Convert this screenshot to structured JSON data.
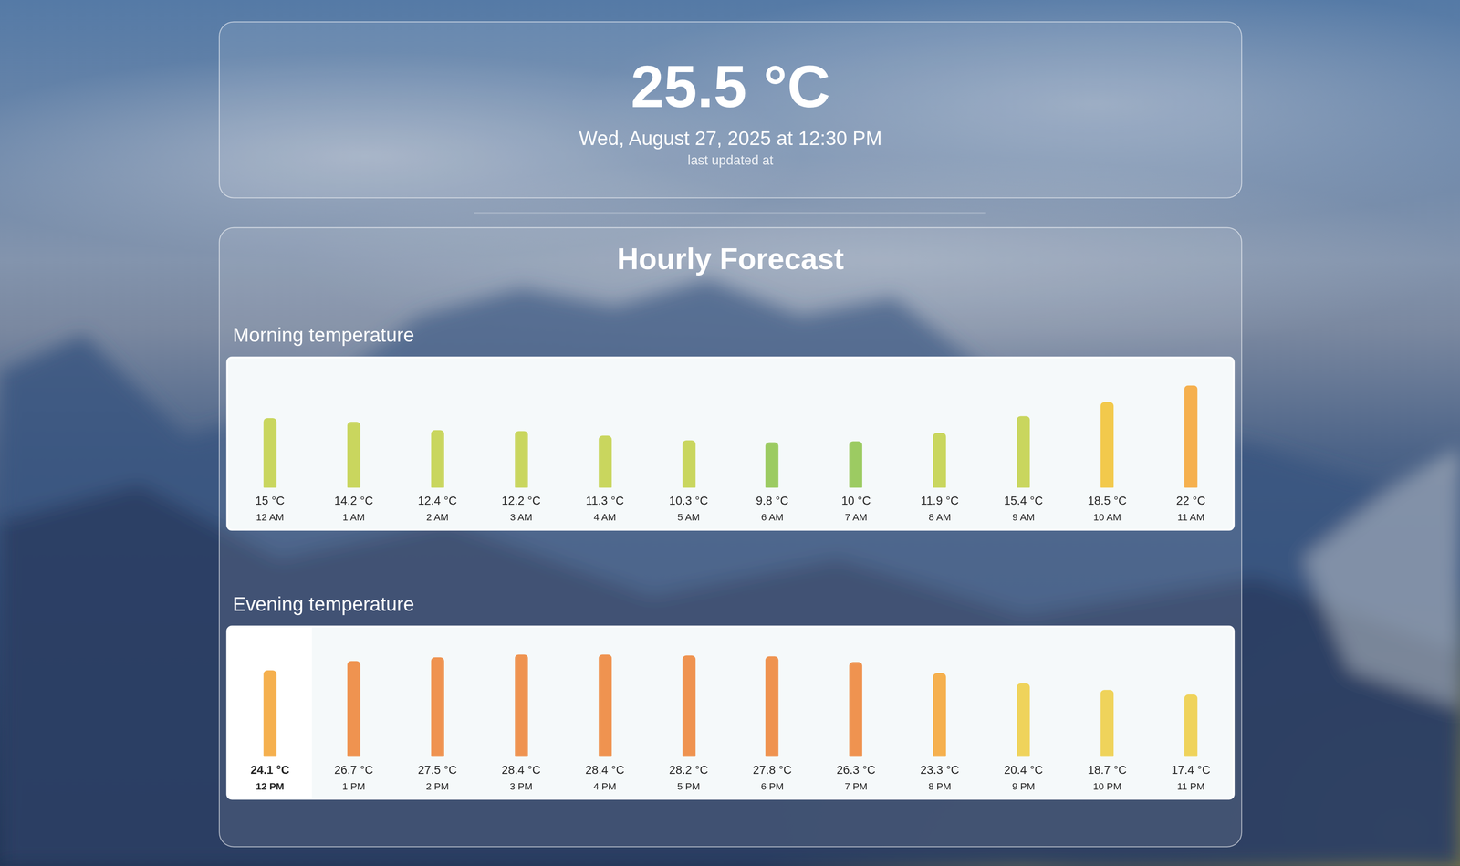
{
  "header": {
    "temperature": "25.5 °C",
    "updated": "Wed, August 27, 2025 at 12:30 PM",
    "caption": "last updated at"
  },
  "forecast": {
    "title": "Hourly Forecast"
  },
  "chart_data": [
    {
      "type": "bar",
      "title": "Morning temperature",
      "categories": [
        "12 AM",
        "1 AM",
        "2 AM",
        "3 AM",
        "4 AM",
        "5 AM",
        "6 AM",
        "7 AM",
        "8 AM",
        "9 AM",
        "10 AM",
        "11 AM"
      ],
      "values": [
        15,
        14.2,
        12.4,
        12.2,
        11.3,
        10.3,
        9.8,
        10,
        11.9,
        15.4,
        18.5,
        22
      ],
      "value_labels": [
        "15 °C",
        "14.2 °C",
        "12.4 °C",
        "12.2 °C",
        "11.3 °C",
        "10.3 °C",
        "9.8 °C",
        "10 °C",
        "11.9 °C",
        "15.4 °C",
        "18.5 °C",
        "22 °C"
      ],
      "colors": [
        "#c9d65e",
        "#c9d65e",
        "#c9d65e",
        "#c9d65e",
        "#c9d65e",
        "#c9d65e",
        "#9ccb62",
        "#9ccb62",
        "#c9d65e",
        "#c9d65e",
        "#f2c94c",
        "#f5b04e"
      ],
      "ylim": [
        0,
        22
      ],
      "data_labels": true,
      "tick_labels": false
    },
    {
      "type": "bar",
      "title": "Evening temperature",
      "categories": [
        "12 PM",
        "1 PM",
        "2 PM",
        "3 PM",
        "4 PM",
        "5 PM",
        "6 PM",
        "7 PM",
        "8 PM",
        "9 PM",
        "10 PM",
        "11 PM"
      ],
      "values": [
        24.1,
        26.7,
        27.5,
        28.4,
        28.4,
        28.2,
        27.8,
        26.3,
        23.3,
        20.4,
        18.7,
        17.4
      ],
      "value_labels": [
        "24.1 °C",
        "26.7 °C",
        "27.5 °C",
        "28.4 °C",
        "28.4 °C",
        "28.2 °C",
        "27.8 °C",
        "26.3 °C",
        "23.3 °C",
        "20.4 °C",
        "18.7 °C",
        "17.4 °C"
      ],
      "colors": [
        "#f5b04e",
        "#ef9350",
        "#ef9350",
        "#ef9350",
        "#ef9350",
        "#ef9350",
        "#ef9350",
        "#ef9350",
        "#f5b04e",
        "#efd35b",
        "#efd35b",
        "#efd35b"
      ],
      "ylim": [
        0,
        28.4
      ],
      "data_labels": true,
      "tick_labels": false
    }
  ]
}
